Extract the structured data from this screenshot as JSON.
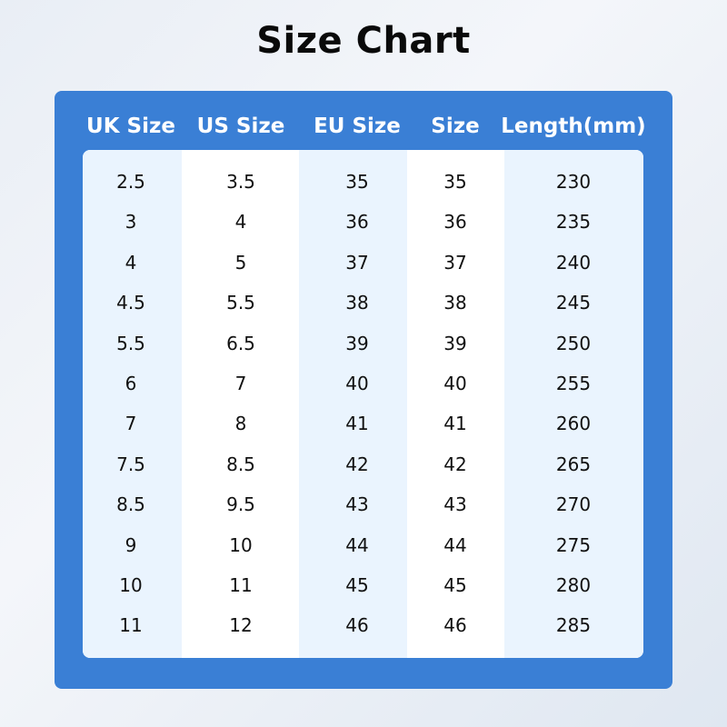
{
  "title": "Size Chart",
  "colors": {
    "panel": "#3a7fd5",
    "stripe": "#eaf4fe"
  },
  "headers": [
    "UK Size",
    "US Size",
    "EU Size",
    "Size",
    "Length(mm)"
  ],
  "rows": [
    [
      "2.5",
      "3.5",
      "35",
      "35",
      "230"
    ],
    [
      "3",
      "4",
      "36",
      "36",
      "235"
    ],
    [
      "4",
      "5",
      "37",
      "37",
      "240"
    ],
    [
      "4.5",
      "5.5",
      "38",
      "38",
      "245"
    ],
    [
      "5.5",
      "6.5",
      "39",
      "39",
      "250"
    ],
    [
      "6",
      "7",
      "40",
      "40",
      "255"
    ],
    [
      "7",
      "8",
      "41",
      "41",
      "260"
    ],
    [
      "7.5",
      "8.5",
      "42",
      "42",
      "265"
    ],
    [
      "8.5",
      "9.5",
      "43",
      "43",
      "270"
    ],
    [
      "9",
      "10",
      "44",
      "44",
      "275"
    ],
    [
      "10",
      "11",
      "45",
      "45",
      "280"
    ],
    [
      "11",
      "12",
      "46",
      "46",
      "285"
    ]
  ]
}
